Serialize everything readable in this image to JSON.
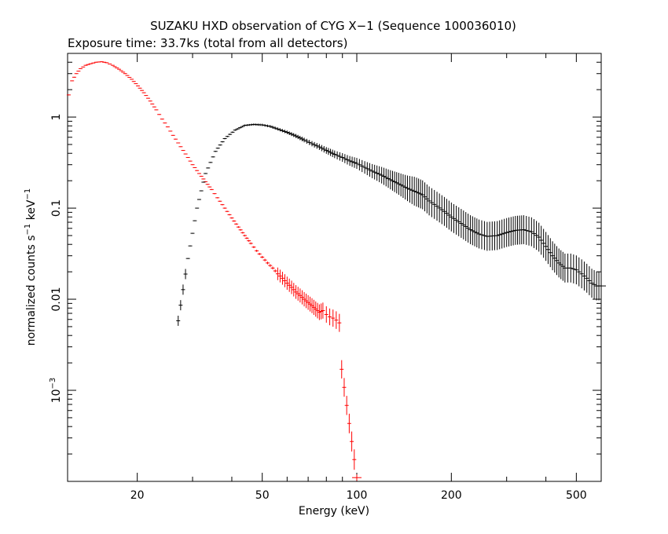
{
  "chart_data": {
    "type": "scatter",
    "title": "SUZAKU HXD observation of CYG X−1 (Sequence 100036010)",
    "subtitle": "Exposure time: 33.7ks (total from all detectors)",
    "xlabel": "Energy (keV)",
    "ylabel_main": "normalized counts s",
    "ylabel_exp1": "−1",
    "ylabel_mid": " keV",
    "ylabel_exp2": "−1",
    "x_scale": "log",
    "y_scale": "log",
    "xlim": [
      12,
      600
    ],
    "ylim": [
      0.0001,
      5
    ],
    "x_tick_labels": [
      "20",
      "50",
      "100",
      "200",
      "500"
    ],
    "x_tick_values": [
      20,
      50,
      100,
      200,
      500
    ],
    "y_tick_labels": [
      "1",
      "0.1",
      "0.01"
    ],
    "y_tick_values": [
      1,
      0.1,
      0.01
    ],
    "y_tick_exp_label": {
      "base": "10",
      "exp": "−3",
      "value": 0.001
    },
    "grid": false,
    "series": [
      {
        "color": "#ff0000",
        "points": [
          [
            12.1,
            1.75
          ],
          [
            12.4,
            2.5
          ],
          [
            12.8,
            3.0
          ],
          [
            13.2,
            3.4
          ],
          [
            13.7,
            3.7
          ],
          [
            14.2,
            3.85
          ],
          [
            14.8,
            4.0
          ],
          [
            15.4,
            4.05
          ],
          [
            16,
            3.95
          ],
          [
            16.7,
            3.7
          ],
          [
            17.5,
            3.35
          ],
          [
            18.3,
            3.0
          ],
          [
            19.2,
            2.6
          ],
          [
            20.1,
            2.2
          ],
          [
            21,
            1.85
          ],
          [
            22,
            1.5
          ],
          [
            23,
            1.2
          ],
          [
            24,
            0.95
          ],
          [
            25,
            0.78
          ],
          [
            26,
            0.63
          ],
          [
            27,
            0.52
          ],
          [
            28,
            0.43
          ],
          [
            29,
            0.36
          ],
          [
            30,
            0.3
          ],
          [
            31.5,
            0.24
          ],
          [
            33,
            0.195
          ],
          [
            34.5,
            0.16
          ],
          [
            36,
            0.13
          ],
          [
            38,
            0.1
          ],
          [
            40,
            0.078
          ],
          [
            42,
            0.062
          ],
          [
            44,
            0.05
          ],
          [
            46,
            0.041
          ],
          [
            48,
            0.034
          ],
          [
            50,
            0.029
          ],
          [
            52,
            0.025
          ],
          [
            54,
            0.022
          ],
          [
            56,
            0.019
          ],
          [
            58,
            0.017
          ],
          [
            60,
            0.015
          ],
          [
            62,
            0.0135
          ],
          [
            64,
            0.012
          ],
          [
            66,
            0.011
          ],
          [
            68,
            0.01
          ],
          [
            70,
            0.0092
          ],
          [
            72,
            0.0085
          ],
          [
            74,
            0.0078
          ],
          [
            76,
            0.0072
          ],
          [
            78,
            0.0075
          ],
          [
            80,
            0.0068
          ],
          [
            82,
            0.0064
          ],
          [
            84,
            0.0062
          ],
          [
            86,
            0.0059
          ],
          [
            88,
            0.0055
          ],
          [
            89.5,
            0.0017
          ],
          [
            100,
            0.00011
          ]
        ]
      },
      {
        "color": "#000000",
        "points": [
          [
            27,
            0.0058
          ],
          [
            29,
            0.028
          ],
          [
            31,
            0.1
          ],
          [
            33,
            0.24
          ],
          [
            35.5,
            0.42
          ],
          [
            38,
            0.58
          ],
          [
            41,
            0.72
          ],
          [
            44,
            0.81
          ],
          [
            47,
            0.83
          ],
          [
            50,
            0.82
          ],
          [
            53,
            0.79
          ],
          [
            56,
            0.74
          ],
          [
            60,
            0.68
          ],
          [
            64,
            0.62
          ],
          [
            68,
            0.56
          ],
          [
            72,
            0.51
          ],
          [
            76,
            0.47
          ],
          [
            80,
            0.43
          ],
          [
            85,
            0.39
          ],
          [
            90,
            0.36
          ],
          [
            95,
            0.33
          ],
          [
            100,
            0.31
          ],
          [
            106,
            0.28
          ],
          [
            112,
            0.255
          ],
          [
            120,
            0.23
          ],
          [
            128,
            0.205
          ],
          [
            136,
            0.185
          ],
          [
            145,
            0.165
          ],
          [
            155,
            0.15
          ],
          [
            162,
            0.14
          ],
          [
            170,
            0.12
          ],
          [
            180,
            0.105
          ],
          [
            190,
            0.092
          ],
          [
            200,
            0.08
          ],
          [
            215,
            0.068
          ],
          [
            230,
            0.058
          ],
          [
            245,
            0.052
          ],
          [
            260,
            0.049
          ],
          [
            280,
            0.05
          ],
          [
            300,
            0.054
          ],
          [
            320,
            0.057
          ],
          [
            340,
            0.058
          ],
          [
            360,
            0.055
          ],
          [
            380,
            0.048
          ],
          [
            400,
            0.038
          ],
          [
            420,
            0.03
          ],
          [
            440,
            0.025
          ],
          [
            460,
            0.022
          ],
          [
            480,
            0.022
          ],
          [
            500,
            0.021
          ],
          [
            520,
            0.019
          ],
          [
            540,
            0.017
          ],
          [
            560,
            0.015
          ],
          [
            580,
            0.014
          ],
          [
            600,
            0.014
          ]
        ]
      }
    ]
  }
}
